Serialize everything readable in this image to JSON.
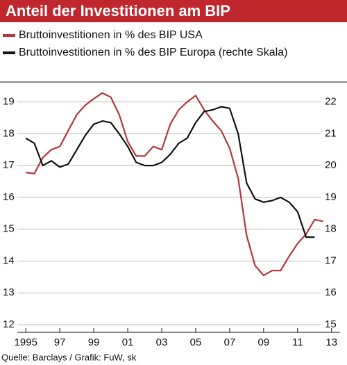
{
  "chart_data": {
    "type": "line",
    "title": "Anteil der Investitionen am BIP",
    "source": "Quelle: Barclays / Grafik: FuW, sk",
    "x": [
      1995.0,
      1995.5,
      1996.0,
      1996.5,
      1997.0,
      1997.5,
      1998.0,
      1998.5,
      1999.0,
      1999.5,
      2000.0,
      2000.5,
      2001.0,
      2001.5,
      2002.0,
      2002.5,
      2003.0,
      2003.5,
      2004.0,
      2004.5,
      2005.0,
      2005.5,
      2006.0,
      2006.5,
      2007.0,
      2007.5,
      2008.0,
      2008.5,
      2009.0,
      2009.5,
      2010.0,
      2010.5,
      2011.0,
      2011.5,
      2012.0,
      2012.5
    ],
    "series": [
      {
        "name": "Bruttoinvestitionen in % des BIP USA",
        "color": "#b5353b",
        "values": [
          16.78,
          16.75,
          17.25,
          17.5,
          17.6,
          18.1,
          18.6,
          18.9,
          19.1,
          19.28,
          19.15,
          18.6,
          17.75,
          17.3,
          17.3,
          17.6,
          17.5,
          18.3,
          18.75,
          19.0,
          19.2,
          18.75,
          18.4,
          18.1,
          17.55,
          16.6,
          14.8,
          13.85,
          13.55,
          13.7,
          13.7,
          14.15,
          14.55,
          14.85,
          15.3,
          15.25
        ]
      },
      {
        "name": "Bruttoinvestitionen in % des BIP Europa (rechte Skala)",
        "color": "#111111",
        "axis": "y2",
        "values": [
          20.86,
          20.7,
          20.0,
          20.15,
          19.95,
          20.05,
          20.5,
          20.95,
          21.3,
          21.4,
          21.35,
          21.0,
          20.6,
          20.1,
          20.0,
          20.0,
          20.1,
          20.35,
          20.7,
          20.86,
          21.35,
          21.7,
          21.75,
          21.85,
          21.8,
          21.0,
          19.45,
          18.95,
          18.85,
          18.9,
          19.0,
          18.85,
          18.55,
          17.75,
          17.75,
          null
        ]
      }
    ],
    "xlim": [
      1994.5,
      2013.5
    ],
    "xticks": [
      1995,
      {
        "value": 1997,
        "label": "97"
      },
      {
        "value": 1999,
        "label": "99"
      },
      {
        "value": 2001,
        "label": "01"
      },
      {
        "value": 2003,
        "label": "03"
      },
      {
        "value": 2005,
        "label": "05"
      },
      {
        "value": 2007,
        "label": "07"
      },
      {
        "value": 2009,
        "label": "09"
      },
      {
        "value": 2011,
        "label": "11"
      },
      {
        "value": 2013,
        "label": "13"
      }
    ],
    "ylim": [
      12,
      19.45
    ],
    "yticks": [
      12,
      13,
      14,
      15,
      16,
      17,
      18,
      19
    ],
    "y2lim": [
      15,
      22.45
    ],
    "y2ticks": [
      15,
      16,
      17,
      18,
      19,
      20,
      21,
      22
    ],
    "grid": true
  }
}
